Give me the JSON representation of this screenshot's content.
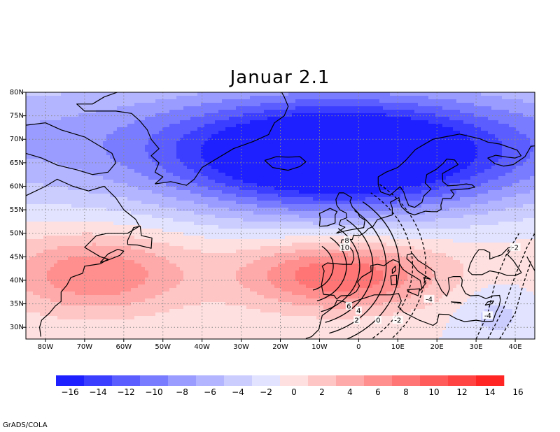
{
  "title": "Januar 2.1",
  "footer": "GrADS/COLA",
  "map": {
    "lon_range": [
      -85,
      45
    ],
    "lat_range": [
      27.5,
      80
    ],
    "lat_ticks": [
      {
        "value": 80,
        "label": "80N"
      },
      {
        "value": 75,
        "label": "75N"
      },
      {
        "value": 70,
        "label": "70N"
      },
      {
        "value": 65,
        "label": "65N"
      },
      {
        "value": 60,
        "label": "60N"
      },
      {
        "value": 55,
        "label": "55N"
      },
      {
        "value": 50,
        "label": "50N"
      },
      {
        "value": 45,
        "label": "45N"
      },
      {
        "value": 40,
        "label": "40N"
      },
      {
        "value": 35,
        "label": "35N"
      },
      {
        "value": 30,
        "label": "30N"
      }
    ],
    "lon_ticks": [
      {
        "value": -80,
        "label": "80W"
      },
      {
        "value": -70,
        "label": "70W"
      },
      {
        "value": -60,
        "label": "60W"
      },
      {
        "value": -50,
        "label": "50W"
      },
      {
        "value": -40,
        "label": "40W"
      },
      {
        "value": -30,
        "label": "30W"
      },
      {
        "value": -20,
        "label": "20W"
      },
      {
        "value": -10,
        "label": "10W"
      },
      {
        "value": 0,
        "label": "0"
      },
      {
        "value": 10,
        "label": "10E"
      },
      {
        "value": 20,
        "label": "20E"
      },
      {
        "value": 30,
        "label": "30E"
      },
      {
        "value": 40,
        "label": "40E"
      }
    ],
    "grid": "dotted"
  },
  "shaded_field": {
    "anomaly_centers": [
      {
        "lon": -5,
        "lat": 66,
        "value": -17
      },
      {
        "lon": -67,
        "lat": 41,
        "value": 7
      },
      {
        "lon": -5,
        "lat": 41,
        "value": 9
      }
    ]
  },
  "contour_labels": [
    {
      "text": "8",
      "lon": -3,
      "lat": 48.5
    },
    {
      "text": "10",
      "lon": -3.5,
      "lat": 47
    },
    {
      "text": "6",
      "lon": -2.5,
      "lat": 34.5
    },
    {
      "text": "4",
      "lon": 0,
      "lat": 33.5
    },
    {
      "text": "2",
      "lon": -0.5,
      "lat": 31.5
    },
    {
      "text": "0",
      "lon": 5,
      "lat": 31.5
    },
    {
      "text": "-2",
      "lon": 10,
      "lat": 31.5
    },
    {
      "text": "-4",
      "lon": 18,
      "lat": 36
    },
    {
      "text": "-4",
      "lon": 33,
      "lat": 32.5
    },
    {
      "text": "-2",
      "lon": 40,
      "lat": 47
    }
  ],
  "colorbar": {
    "colors": [
      "#1e20ff",
      "#3c3eff",
      "#5b5dff",
      "#7a7cff",
      "#9a9cff",
      "#b4b5ff",
      "#cccdff",
      "#e2e3ff",
      "#ffe0e0",
      "#ffc6c6",
      "#ffaaaa",
      "#ff8e8e",
      "#ff7474",
      "#ff5b5b",
      "#ff4242",
      "#ff2525"
    ],
    "labels": [
      "−16",
      "−14",
      "−12",
      "−10",
      "−8",
      "−6",
      "−4",
      "−2",
      "0",
      "2",
      "4",
      "6",
      "8",
      "10",
      "12",
      "14",
      "16"
    ]
  }
}
